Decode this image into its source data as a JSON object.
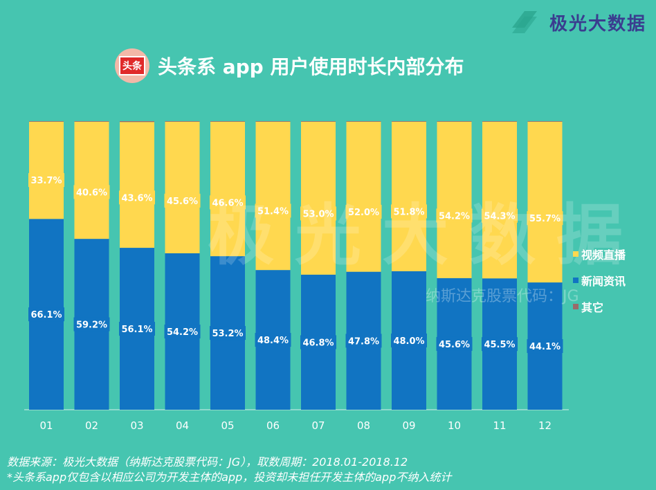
{
  "brand": {
    "name": "极光大数据"
  },
  "header": {
    "app_logo_text": "头条",
    "title": "头条系 app 用户使用时长内部分布"
  },
  "watermark": {
    "main": "极光大数据",
    "sub": "纳斯达克股票代码：JG"
  },
  "colors": {
    "background": "#46C5B0",
    "video": "#FFD84F",
    "news": "#1174C2",
    "other": "#9a6a6a"
  },
  "chart_data": {
    "type": "bar",
    "stacked": true,
    "categories": [
      "01",
      "02",
      "03",
      "04",
      "05",
      "06",
      "07",
      "08",
      "09",
      "10",
      "11",
      "12"
    ],
    "series": [
      {
        "name": "新闻资讯",
        "values": [
          66.1,
          59.2,
          56.1,
          54.2,
          53.2,
          48.4,
          46.8,
          47.8,
          48.0,
          45.6,
          45.5,
          44.1
        ],
        "labels": [
          "66.1%",
          "59.2%",
          "56.1%",
          "54.2%",
          "53.2%",
          "48.4%",
          "46.8%",
          "47.8%",
          "48.0%",
          "45.6%",
          "45.5%",
          "44.1%"
        ]
      },
      {
        "name": "视频直播",
        "values": [
          33.7,
          40.6,
          43.6,
          45.6,
          46.6,
          51.4,
          53.0,
          52.0,
          51.8,
          54.2,
          54.3,
          55.7
        ],
        "labels": [
          "33.7%",
          "40.6%",
          "43.6%",
          "45.6%",
          "46.6%",
          "51.4%",
          "53.0%",
          "52.0%",
          "51.8%",
          "54.2%",
          "54.3%",
          "55.7%"
        ]
      },
      {
        "name": "其它",
        "values": [
          0.2,
          0.2,
          0.3,
          0.2,
          0.2,
          0.2,
          0.2,
          0.2,
          0.2,
          0.2,
          0.2,
          0.2
        ]
      }
    ],
    "ylim": [
      0,
      100
    ],
    "legend_position": "right",
    "grid": false
  },
  "legend": [
    "视频直播",
    "新闻资讯",
    "其它"
  ],
  "footer": {
    "source": "数据来源：极光大数据（纳斯达克股票代码：JG），取数周期：2018.01-2018.12",
    "note": "*头条系app仅包含以相应公司为开发主体的app，投资却未担任开发主体的app不纳入统计"
  }
}
